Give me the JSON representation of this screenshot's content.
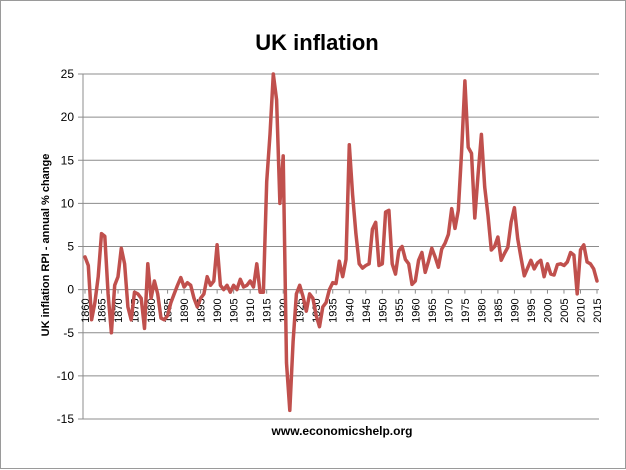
{
  "chart_data": {
    "type": "line",
    "title": "UK inflation",
    "xlabel": "",
    "ylabel": "UK inflation RPI - annual % change",
    "source_note": "www.economicshelp.org",
    "xlim": [
      1860,
      2015
    ],
    "ylim": [
      -15,
      25
    ],
    "y_ticks": [
      "25",
      "20",
      "15",
      "10",
      "5",
      "0",
      "-5",
      "-10",
      "-15"
    ],
    "x_ticks": [
      "1860",
      "1865",
      "1870",
      "1875",
      "1880",
      "1885",
      "1890",
      "1895",
      "1900",
      "1905",
      "1910",
      "1915",
      "1920",
      "1925",
      "1930",
      "1935",
      "1940",
      "1945",
      "1950",
      "1955",
      "1960",
      "1965",
      "1970",
      "1975",
      "1980",
      "1985",
      "1990",
      "1995",
      "2000",
      "2005",
      "2010",
      "2015"
    ],
    "grid": true,
    "series_color": "#c0504d",
    "series": [
      {
        "x": [
          1860,
          1861,
          1862,
          1863,
          1864,
          1865,
          1866,
          1867,
          1868,
          1869,
          1870,
          1871,
          1872,
          1873,
          1874,
          1875,
          1876,
          1877,
          1878,
          1879,
          1880,
          1881,
          1882,
          1883,
          1884,
          1885,
          1886,
          1887,
          1888,
          1889,
          1890,
          1891,
          1892,
          1893,
          1894,
          1895,
          1896,
          1897,
          1898,
          1899,
          1900,
          1901,
          1902,
          1903,
          1904,
          1905,
          1906,
          1907,
          1908,
          1909,
          1910,
          1911,
          1912,
          1913,
          1914,
          1915,
          1916,
          1917,
          1918,
          1919,
          1920,
          1921,
          1922,
          1923,
          1924,
          1925,
          1926,
          1927,
          1928,
          1929,
          1930,
          1931,
          1932,
          1933,
          1934,
          1935,
          1936,
          1937,
          1938,
          1939,
          1940,
          1941,
          1942,
          1943,
          1944,
          1945,
          1946,
          1947,
          1948,
          1949,
          1950,
          1951,
          1952,
          1953,
          1954,
          1955,
          1956,
          1957,
          1958,
          1959,
          1960,
          1961,
          1962,
          1963,
          1964,
          1965,
          1966,
          1967,
          1968,
          1969,
          1970,
          1971,
          1972,
          1973,
          1974,
          1975,
          1976,
          1977,
          1978,
          1979,
          1980,
          1981,
          1982,
          1983,
          1984,
          1985,
          1986,
          1987,
          1988,
          1989,
          1990,
          1991,
          1992,
          1993,
          1994,
          1995,
          1996,
          1997,
          1998,
          1999,
          2000,
          2001,
          2002,
          2003,
          2004,
          2005,
          2006,
          2007,
          2008,
          2009,
          2010,
          2011,
          2012,
          2013,
          2014,
          2015
        ],
        "y": [
          3.8,
          2.8,
          -3.5,
          -1.5,
          1.5,
          6.5,
          6.2,
          -0.5,
          -5.0,
          0.5,
          1.5,
          4.8,
          3.0,
          -2.0,
          -3.5,
          -0.3,
          -0.5,
          -1.0,
          -4.5,
          3.0,
          -1.0,
          1.0,
          -0.5,
          -3.3,
          -3.5,
          -3.0,
          -1.5,
          -0.5,
          0.5,
          1.4,
          0.3,
          0.8,
          0.5,
          -1.0,
          -2.0,
          -1.0,
          -0.5,
          1.5,
          0.5,
          1.0,
          5.2,
          0.5,
          0.0,
          0.5,
          -0.3,
          0.5,
          0.0,
          1.2,
          0.3,
          0.5,
          1.0,
          0.3,
          3.0,
          -0.3,
          -0.3,
          12.5,
          18.0,
          25.0,
          22.0,
          10.0,
          15.5,
          -8.5,
          -14.0,
          -6.0,
          -0.5,
          0.5,
          -0.8,
          -2.5,
          -0.5,
          -1.0,
          -3.0,
          -4.3,
          -2.0,
          -1.5,
          0.0,
          0.8,
          0.7,
          3.3,
          1.5,
          3.5,
          16.8,
          11.0,
          6.5,
          3.0,
          2.5,
          2.8,
          3.0,
          7.0,
          7.8,
          2.8,
          3.0,
          9.0,
          9.2,
          3.0,
          1.8,
          4.5,
          5.0,
          3.5,
          3.0,
          0.6,
          1.0,
          3.4,
          4.3,
          2.0,
          3.3,
          4.8,
          3.8,
          2.6,
          4.7,
          5.4,
          6.4,
          9.4,
          7.1,
          9.2,
          16.0,
          24.2,
          16.5,
          15.8,
          8.3,
          13.4,
          18.0,
          11.9,
          8.6,
          4.6,
          5.0,
          6.1,
          3.4,
          4.2,
          4.9,
          7.8,
          9.5,
          5.9,
          3.7,
          1.6,
          2.5,
          3.4,
          2.4,
          3.1,
          3.4,
          1.5,
          3.0,
          1.8,
          1.7,
          2.9,
          3.0,
          2.8,
          3.2,
          4.3,
          4.0,
          -0.5,
          4.6,
          5.2,
          3.2,
          3.0,
          2.4,
          1.0
        ]
      }
    ]
  }
}
